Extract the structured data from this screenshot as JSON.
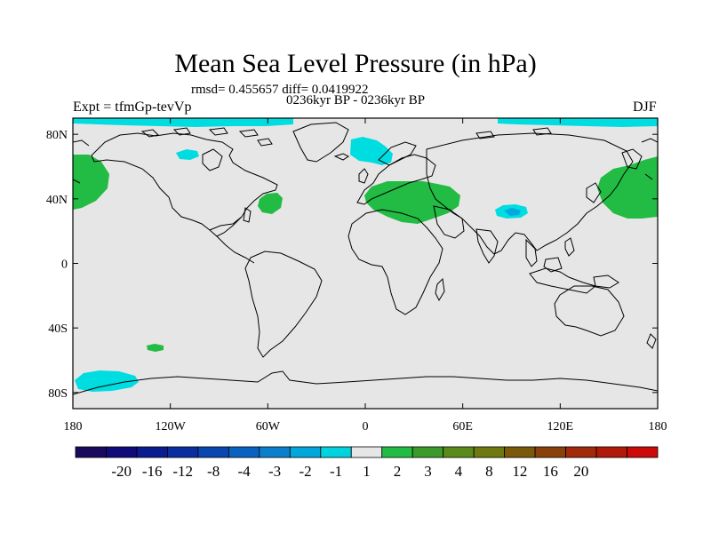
{
  "header": {
    "title": "Mean Sea Level Pressure (in hPa)",
    "stats": "rmsd= 0.455657 diff= 0.0419922",
    "period": "0236kyr BP - 0236kyr BP",
    "experiment": "Expt = tfmGp-tevVp",
    "season": "DJF"
  },
  "map": {
    "projection": "cylindrical equidistant",
    "lon_range": [
      -180,
      180
    ],
    "lat_range": [
      -90,
      90
    ],
    "x_ticks": [
      {
        "lon": -180,
        "label": "180"
      },
      {
        "lon": -120,
        "label": "120W"
      },
      {
        "lon": -60,
        "label": "60W"
      },
      {
        "lon": 0,
        "label": "0"
      },
      {
        "lon": 60,
        "label": "60E"
      },
      {
        "lon": 120,
        "label": "120E"
      },
      {
        "lon": 180,
        "label": "180"
      }
    ],
    "y_ticks": [
      {
        "lat": 80,
        "label": "80N"
      },
      {
        "lat": 40,
        "label": "40N"
      },
      {
        "lat": 0,
        "label": "0"
      },
      {
        "lat": -40,
        "label": "40S"
      },
      {
        "lat": -80,
        "label": "80S"
      }
    ],
    "background_color": "#e6e6e6",
    "anomaly_regions": [
      {
        "name": "north-pacific-west",
        "level": "1 to 2",
        "color": "#22bb44"
      },
      {
        "name": "east-asia-pacific",
        "level": "1 to 2",
        "color": "#22bb44"
      },
      {
        "name": "mediterranean-middle-east",
        "level": "1 to 2",
        "color": "#22bb44"
      },
      {
        "name": "north-atlantic",
        "level": "1 to 2",
        "color": "#22bb44"
      },
      {
        "name": "arctic-north-america",
        "level": "-2 to -1",
        "color": "#00dde0"
      },
      {
        "name": "arctic-greenland-sea",
        "level": "-2 to -1",
        "color": "#00dde0"
      },
      {
        "name": "north-atlantic-greenland",
        "level": "-2 to -1",
        "color": "#00dde0"
      },
      {
        "name": "arctic-siberia",
        "level": "-2 to -1",
        "color": "#00dde0"
      },
      {
        "name": "tibetan-plateau",
        "level": "-2 to -1",
        "color": "#00dde0"
      },
      {
        "name": "tibetan-plateau-core",
        "level": "-3 to -2",
        "color": "#00aadd"
      },
      {
        "name": "southern-pacific",
        "level": "1 to 2",
        "color": "#22bb44"
      },
      {
        "name": "antarctic-pacific-sector",
        "level": "-2 to -1",
        "color": "#00dde0"
      }
    ]
  },
  "colorbar": {
    "colors": [
      "#1a0a5e",
      "#100a7a",
      "#0a1a8f",
      "#0a2da0",
      "#0a46b0",
      "#0a62c0",
      "#0a80cc",
      "#00a6dc",
      "#00d2e0",
      "#e6e6e6",
      "#22bb44",
      "#3c9a2a",
      "#5a8a1a",
      "#6e7a10",
      "#7a5a0a",
      "#8a400a",
      "#a02a0a",
      "#b01a0a",
      "#cc0a0a"
    ],
    "labels": [
      "-20",
      "-16",
      "-12",
      "-8",
      "-4",
      "-3",
      "-2",
      "-1",
      "1",
      "2",
      "3",
      "4",
      "8",
      "12",
      "16",
      "20"
    ]
  }
}
